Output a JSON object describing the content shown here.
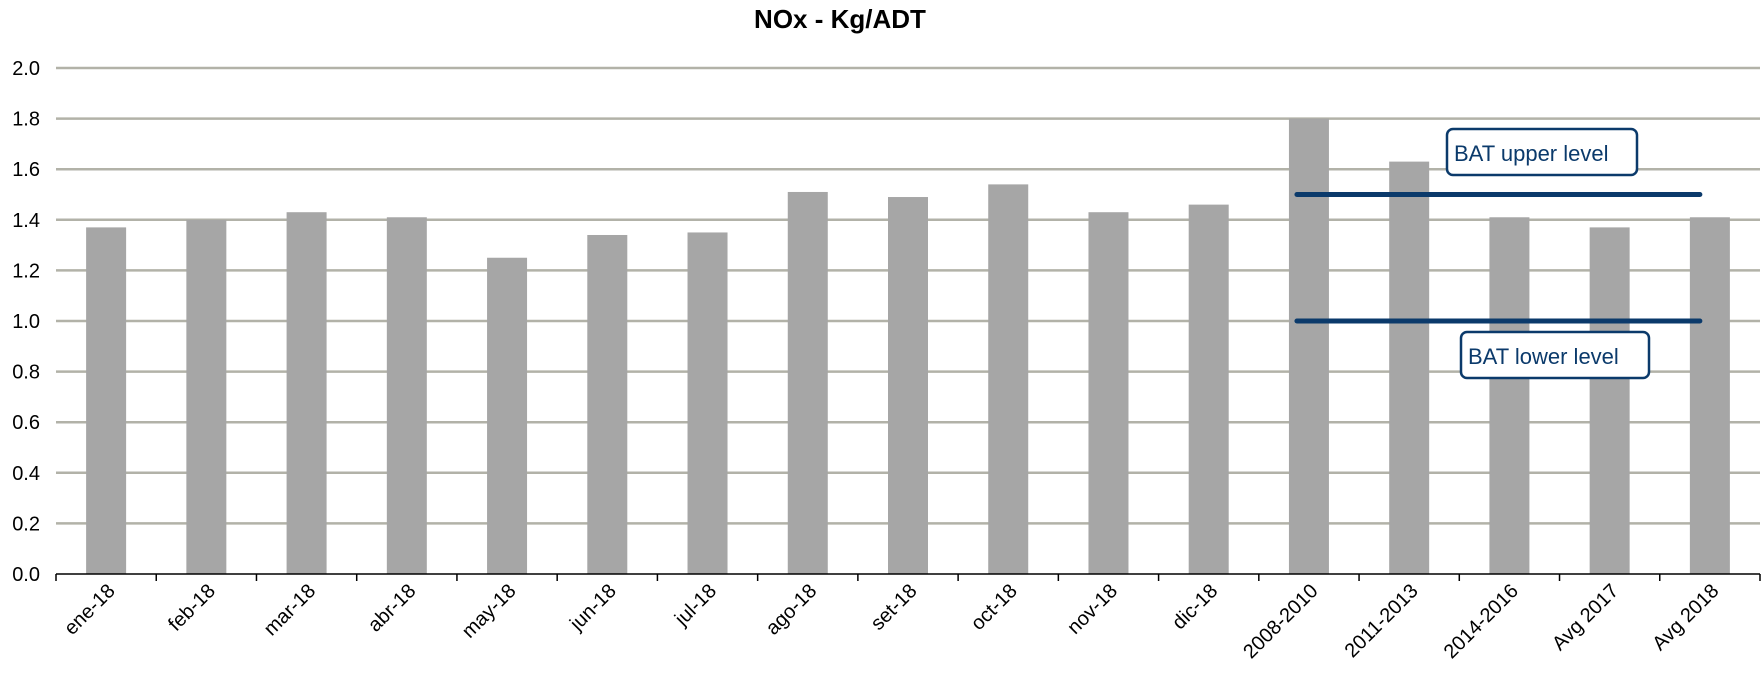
{
  "chart_data": {
    "type": "bar",
    "title": "NOx - Kg/ADT",
    "xlabel": "",
    "ylabel": "",
    "ylim": [
      0,
      2.0
    ],
    "yticks": [
      "0.0",
      "0.2",
      "0.4",
      "0.6",
      "0.8",
      "1.0",
      "1.2",
      "1.4",
      "1.6",
      "1.8",
      "2.0"
    ],
    "grid": true,
    "categories": [
      "ene-18",
      "feb-18",
      "mar-18",
      "abr-18",
      "may-18",
      "jun-18",
      "jul-18",
      "ago-18",
      "set-18",
      "oct-18",
      "nov-18",
      "dic-18",
      "2008-2010",
      "2011-2013",
      "2014-2016",
      "Avg 2017",
      "Avg 2018"
    ],
    "values": [
      1.37,
      1.4,
      1.43,
      1.41,
      1.25,
      1.34,
      1.35,
      1.51,
      1.49,
      1.54,
      1.43,
      1.46,
      1.8,
      1.63,
      1.41,
      1.37,
      1.41
    ],
    "bar_color": "#a6a6a6",
    "reference_lines": [
      {
        "label": "BAT upper level",
        "value": 1.5,
        "from_category": "2008-2010",
        "to_category": "Avg 2018",
        "color": "#0b3a6b"
      },
      {
        "label": "BAT lower level",
        "value": 1.0,
        "from_category": "2008-2010",
        "to_category": "Avg 2018",
        "color": "#0b3a6b"
      }
    ]
  }
}
